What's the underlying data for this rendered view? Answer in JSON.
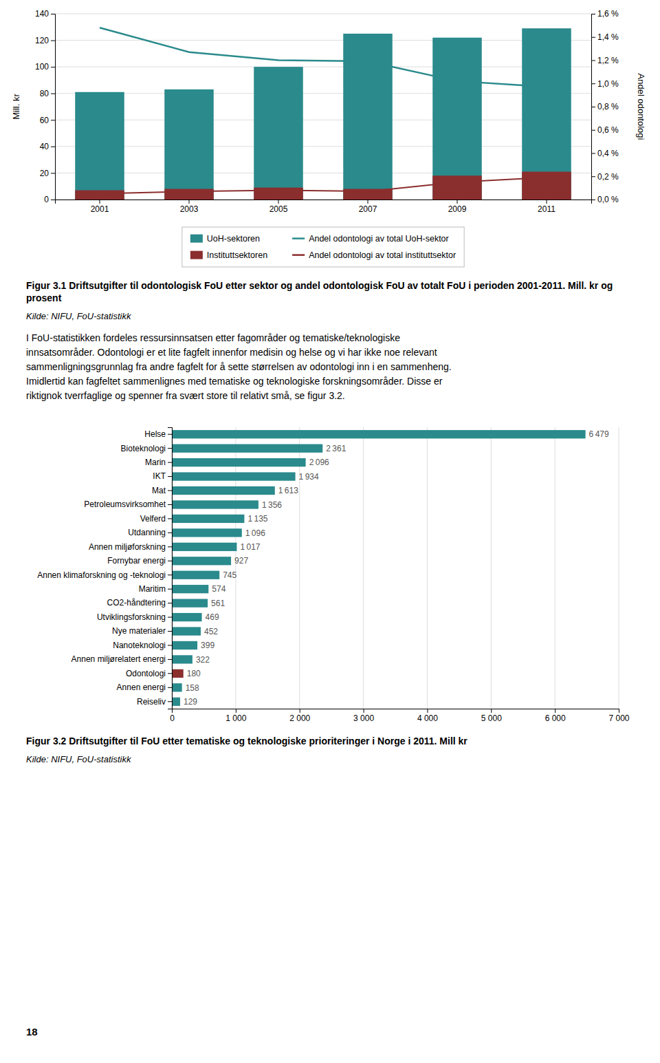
{
  "chart_data": [
    {
      "type": "bar",
      "title": "Figur 3.1 Driftsutgifter til odontologisk FoU etter sektor og andel odontologisk FoU av totalt FoU i perioden 2001-2011. Mill. kr og prosent",
      "annotations": [
        "Kilde: NIFU, FoU-statistikk",
        "I FoU-statistikken fordeles ressursinnsatsen etter fagområder og tematiske/teknologiske",
        "innsatsområder. Odontologi er et lite fagfelt innenfor medisin og helse og vi har ikke noe relevant",
        "sammenligningsgrunnlag fra andre fagfelt for å sette størrelsen av odontologi inn i en sammenheng.",
        "Imidlertid kan fagfeltet sammenlignes med tematiske og teknologiske forskningsområder. Disse er",
        "riktignok tverrfaglige og spenner fra svært store til relativt små, se figur 3.2."
      ],
      "categories": [
        "2001",
        "2003",
        "2005",
        "2007",
        "2009",
        "2011"
      ],
      "series": [
        {
          "name": "UoH-sektoren",
          "type": "bar",
          "color": "#2a8a8c",
          "values": [
            81,
            83,
            100,
            125,
            122,
            129
          ]
        },
        {
          "name": "Instituttsektoren",
          "type": "bar",
          "color": "#8b2e2e",
          "values": [
            7,
            8,
            9,
            8,
            18,
            21
          ]
        },
        {
          "name": "Andel odontologi av total UoH-sektor",
          "type": "line",
          "axis": "y2",
          "color": "#2a8a8c",
          "values": [
            1.48,
            1.27,
            1.2,
            1.19,
            1.02,
            0.97
          ]
        },
        {
          "name": "Andel odontologi av total instituttsektor",
          "type": "line",
          "axis": "y2",
          "color": "#8b2e2e",
          "values": [
            0.05,
            0.07,
            0.08,
            0.07,
            0.15,
            0.19
          ]
        }
      ],
      "ylabel": "Mill. kr",
      "y2label": "Andel odontologi",
      "ylim": [
        0,
        140
      ],
      "yticks": [
        0,
        20,
        40,
        60,
        80,
        100,
        120,
        140
      ],
      "y2lim": [
        0.0,
        1.6
      ],
      "y2ticks": [
        {
          "value": 0.0,
          "label": "0,0 %"
        },
        {
          "value": 0.2,
          "label": "0,2 %"
        },
        {
          "value": 0.4,
          "label": "0,4 %"
        },
        {
          "value": 0.6,
          "label": "0,6 %"
        },
        {
          "value": 0.8,
          "label": "0,8 %"
        },
        {
          "value": 1.0,
          "label": "1,0 %"
        },
        {
          "value": 1.2,
          "label": "1,2 %"
        },
        {
          "value": 1.4,
          "label": "1,4 %"
        },
        {
          "value": 1.6,
          "label": "1,6 %"
        }
      ],
      "grid": true,
      "legend": "bottom"
    },
    {
      "type": "bar",
      "orientation": "horizontal",
      "title": "Figur 3.2 Driftsutgifter til FoU etter tematiske og teknologiske prioriteringer i Norge i 2011. Mill kr",
      "annotations": [
        "Kilde: NIFU, FoU-statistikk",
        "18"
      ],
      "categories": [
        "Helse",
        "Bioteknologi",
        "Marin",
        "IKT",
        "Mat",
        "Petroleumsvirksomhet",
        "Velferd",
        "Utdanning",
        "Annen miljøforskning",
        "Fornybar energi",
        "Annen klimaforskning og -teknologi",
        "Maritim",
        "CO2-håndtering",
        "Utviklingsforskning",
        "Nye materialer",
        "Nanoteknologi",
        "Annen miljørelatert energi",
        "Odontologi",
        "Annen energi",
        "Reiseliv"
      ],
      "values": [
        6479,
        2361,
        2096,
        1934,
        1613,
        1356,
        1135,
        1096,
        1017,
        927,
        745,
        574,
        561,
        469,
        452,
        399,
        322,
        180,
        158,
        129
      ],
      "value_labels": [
        "6 479",
        "2 361",
        "2 096",
        "1 934",
        "1 613",
        "1 356",
        "1 135",
        "1 096",
        "1 017",
        "927",
        "745",
        "574",
        "561",
        "469",
        "452",
        "399",
        "322",
        "180",
        "158",
        "129"
      ],
      "colors": [
        "#2a8a8c",
        "#2a8a8c",
        "#2a8a8c",
        "#2a8a8c",
        "#2a8a8c",
        "#2a8a8c",
        "#2a8a8c",
        "#2a8a8c",
        "#2a8a8c",
        "#2a8a8c",
        "#2a8a8c",
        "#2a8a8c",
        "#2a8a8c",
        "#2a8a8c",
        "#2a8a8c",
        "#2a8a8c",
        "#2a8a8c",
        "#8b2e2e",
        "#2a8a8c",
        "#2a8a8c"
      ],
      "xlim": [
        0,
        7000
      ],
      "xticks": [
        0,
        {
          "value": 1000,
          "label": "1 000"
        },
        {
          "value": 2000,
          "label": "2 000"
        },
        {
          "value": 3000,
          "label": "3 000"
        },
        {
          "value": 4000,
          "label": "4 000"
        },
        {
          "value": 5000,
          "label": "5 000"
        },
        {
          "value": 6000,
          "label": "6 000"
        },
        {
          "value": 7000,
          "label": "7 000"
        }
      ],
      "grid": true,
      "data_labels": true
    }
  ]
}
